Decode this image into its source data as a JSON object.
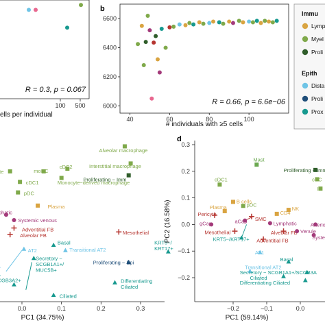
{
  "colors": {
    "lymphoid": "#d9a441",
    "myeloid": "#7fa94a",
    "proliferating_imm": "#2f5d2a",
    "distal": "#6ec4e6",
    "proliferating_epi": "#1f4e79",
    "proximal": "#17998f",
    "endothelial": "#a33a7a",
    "mesenchymal": "#b5342f",
    "mast": "#6aa84f",
    "pink": "#e8678f"
  },
  "chart_data": [
    {
      "id": "a",
      "type": "scatter",
      "xlabel": "ells per individual",
      "ylabel": "",
      "x_ticks": [
        "100",
        "500"
      ],
      "annotation": "R = 0.3, p = 0.067",
      "points": [
        {
          "x": 40,
          "y": 0.9,
          "color": "distal"
        },
        {
          "x": 60,
          "y": 0.9,
          "color": "pink"
        },
        {
          "x": 120,
          "y": 0.72,
          "color": "proximal"
        },
        {
          "x": 500,
          "y": 0.95,
          "color": "myeloid"
        }
      ]
    },
    {
      "id": "b",
      "type": "scatter",
      "xlabel": "# individuals with ≥5 cells",
      "ylabel": "",
      "xlim": [
        35,
        120
      ],
      "ylim": [
        5950,
        6700
      ],
      "x_ticks": [
        40,
        60,
        80,
        100
      ],
      "y_ticks": [
        6000,
        6200,
        6400,
        6600
      ],
      "annotation": "R = 0.66, p = 6.6e−06",
      "points": [
        {
          "x": 44,
          "y": 6425,
          "color": "myeloid"
        },
        {
          "x": 46,
          "y": 6550,
          "color": "lymphoid"
        },
        {
          "x": 47,
          "y": 6280,
          "color": "myeloid"
        },
        {
          "x": 48,
          "y": 6440,
          "color": "proliferating_imm"
        },
        {
          "x": 49,
          "y": 6620,
          "color": "myeloid"
        },
        {
          "x": 50,
          "y": 6520,
          "color": "endothelial"
        },
        {
          "x": 51,
          "y": 6050,
          "color": "pink"
        },
        {
          "x": 52,
          "y": 6435,
          "color": "mesenchymal"
        },
        {
          "x": 53,
          "y": 6480,
          "color": "proliferating_imm"
        },
        {
          "x": 54,
          "y": 6320,
          "color": "lymphoid"
        },
        {
          "x": 55,
          "y": 6230,
          "color": "endothelial"
        },
        {
          "x": 56,
          "y": 6530,
          "color": "proximal"
        },
        {
          "x": 58,
          "y": 6400,
          "color": "myeloid"
        },
        {
          "x": 60,
          "y": 6540,
          "color": "mesenchymal"
        },
        {
          "x": 62,
          "y": 6545,
          "color": "myeloid"
        },
        {
          "x": 65,
          "y": 6560,
          "color": "distal"
        },
        {
          "x": 68,
          "y": 6555,
          "color": "lymphoid"
        },
        {
          "x": 70,
          "y": 6570,
          "color": "myeloid"
        },
        {
          "x": 72,
          "y": 6560,
          "color": "proximal"
        },
        {
          "x": 75,
          "y": 6575,
          "color": "lymphoid"
        },
        {
          "x": 77,
          "y": 6565,
          "color": "myeloid"
        },
        {
          "x": 80,
          "y": 6570,
          "color": "distal"
        },
        {
          "x": 82,
          "y": 6580,
          "color": "lymphoid"
        },
        {
          "x": 85,
          "y": 6575,
          "color": "proximal"
        },
        {
          "x": 87,
          "y": 6565,
          "color": "myeloid"
        },
        {
          "x": 90,
          "y": 6580,
          "color": "lymphoid"
        },
        {
          "x": 92,
          "y": 6570,
          "color": "endothelial"
        },
        {
          "x": 95,
          "y": 6585,
          "color": "myeloid"
        },
        {
          "x": 97,
          "y": 6575,
          "color": "lymphoid"
        },
        {
          "x": 100,
          "y": 6580,
          "color": "distal"
        },
        {
          "x": 102,
          "y": 6575,
          "color": "myeloid"
        },
        {
          "x": 104,
          "y": 6585,
          "color": "proximal"
        },
        {
          "x": 106,
          "y": 6570,
          "color": "lymphoid"
        },
        {
          "x": 108,
          "y": 6585,
          "color": "myeloid"
        },
        {
          "x": 110,
          "y": 6580,
          "color": "lymphoid"
        },
        {
          "x": 112,
          "y": 6575,
          "color": "myeloid"
        },
        {
          "x": 114,
          "y": 6585,
          "color": "proximal"
        }
      ]
    },
    {
      "id": "c",
      "type": "scatter",
      "xlabel": "PC1 (34.75%)",
      "ylabel": "",
      "xlim": [
        -0.07,
        0.42
      ],
      "x_ticks": [
        "0.0",
        "0.1",
        "0.2",
        "0.3"
      ],
      "x_tick_values": [
        0.0,
        0.1,
        0.2,
        0.3
      ],
      "points": [
        {
          "label": "Alveolar macrophage",
          "x": 0.26,
          "y": 0.93,
          "color": "myeloid",
          "shape": "square",
          "lx": 0.195,
          "ly": 0.9
        },
        {
          "label": "Interstitial macrophage",
          "x": 0.275,
          "y": 0.8,
          "color": "myeloid",
          "shape": "square",
          "lx": 0.17,
          "ly": 0.78
        },
        {
          "label": "Proliferating − Imm",
          "x": 0.27,
          "y": 0.71,
          "color": "proliferating_imm",
          "shape": "square",
          "lx": 0.155,
          "ly": 0.68
        },
        {
          "label": "cDC2",
          "x": 0.115,
          "y": 0.76,
          "color": "myeloid",
          "shape": "square",
          "lx": 0.095,
          "ly": 0.775
        },
        {
          "label": "moDC",
          "x": 0.055,
          "y": 0.74,
          "color": "myeloid",
          "shape": "square",
          "lx": 0.03,
          "ly": 0.745
        },
        {
          "label": "Monocyte−derived macrophage",
          "x": 0.1,
          "y": 0.69,
          "color": "myeloid",
          "shape": "square",
          "lx": 0.09,
          "ly": 0.655
        },
        {
          "label": "cyte",
          "x": -0.03,
          "y": 0.74,
          "color": "myeloid",
          "shape": "square",
          "lx": -0.07,
          "ly": 0.74
        },
        {
          "label": "cDC1",
          "x": -0.005,
          "y": 0.66,
          "color": "myeloid",
          "shape": "square",
          "lx": 0.01,
          "ly": 0.655
        },
        {
          "label": "pDC",
          "x": -0.01,
          "y": 0.58,
          "color": "myeloid",
          "shape": "square",
          "lx": 0.005,
          "ly": 0.575
        },
        {
          "label": "Plasma",
          "x": 0.04,
          "y": 0.48,
          "color": "lymphoid",
          "shape": "square",
          "lx": 0.065,
          "ly": 0.475
        },
        {
          "label": "mphatic",
          "x": -0.04,
          "y": 0.41,
          "color": "endothelial",
          "shape": "circle",
          "lx": -0.07,
          "ly": 0.43
        },
        {
          "label": "Systemic venous",
          "x": -0.02,
          "y": 0.37,
          "color": "endothelial",
          "shape": "circle",
          "lx": -0.01,
          "ly": 0.37
        },
        {
          "label": "Adventitial FB",
          "x": -0.02,
          "y": 0.31,
          "color": "mesenchymal",
          "shape": "plus",
          "lx": 0.0,
          "ly": 0.3
        },
        {
          "label": "Alveolar FB",
          "x": -0.03,
          "y": 0.26,
          "color": "mesenchymal",
          "shape": "plus",
          "lx": -0.005,
          "ly": 0.255
        },
        {
          "label": "Mesothelial",
          "x": 0.245,
          "y": 0.28,
          "color": "mesenchymal",
          "shape": "plus",
          "lx": 0.255,
          "ly": 0.275
        },
        {
          "label": "AT2",
          "x": 0.005,
          "y": 0.15,
          "color": "distal",
          "shape": "triangle",
          "lx": 0.015,
          "ly": 0.14
        },
        {
          "label": "Basal",
          "x": 0.08,
          "y": 0.18,
          "color": "proximal",
          "shape": "triangle",
          "lx": 0.09,
          "ly": 0.2
        },
        {
          "label": "Transitional AT2",
          "x": 0.11,
          "y": 0.14,
          "color": "distal",
          "shape": "triangle",
          "lx": 0.12,
          "ly": 0.145
        },
        {
          "label": "KRT5−/\nKRT17+",
          "x": 0.37,
          "y": 0.13,
          "color": "proximal",
          "shape": "triangle",
          "lx": 0.335,
          "ly": 0.2
        },
        {
          "label": "Proliferating − Epi",
          "x": 0.27,
          "y": 0.05,
          "color": "proliferating_epi",
          "shape": "triangle",
          "lx": 0.18,
          "ly": 0.05
        },
        {
          "label": "Secretory −\nSCGB1A1+/\nMUC5B+",
          "x": 0.03,
          "y": 0.08,
          "color": "proximal",
          "shape": "triangle",
          "lx": 0.035,
          "ly": 0.08
        },
        {
          "label": "SCGB3A2+",
          "x": -0.02,
          "y": -0.12,
          "color": "proximal",
          "shape": "triangle",
          "lx": -0.07,
          "ly": -0.085
        },
        {
          "label": "Ciliated",
          "x": 0.08,
          "y": -0.2,
          "color": "proximal",
          "shape": "triangle",
          "lx": 0.095,
          "ly": -0.205
        },
        {
          "label": "Differentiating\nCiliated",
          "x": 0.235,
          "y": -0.105,
          "color": "proximal",
          "shape": "triangle",
          "lx": 0.25,
          "ly": -0.09
        },
        {
          "label": "",
          "x": -0.06,
          "y": -0.04,
          "color": "proximal",
          "shape": "triangle",
          "lx": -0.06,
          "ly": -0.04
        },
        {
          "label": "",
          "x": -0.06,
          "y": 0.02,
          "color": "distal",
          "shape": "triangle",
          "lx": -0.06,
          "ly": 0.02
        }
      ]
    },
    {
      "id": "d",
      "type": "scatter",
      "xlabel": "PC1 (59.14%)",
      "ylabel": "PC2 (16.58%)",
      "xlim": [
        -0.32,
        0.06
      ],
      "ylim": [
        -0.285,
        0.31
      ],
      "x_ticks": [
        "−0.2",
        "−0.1",
        "0.0"
      ],
      "x_tick_values": [
        -0.2,
        -0.1,
        0.0
      ],
      "y_ticks": [
        "0.3",
        "0.2",
        "0.1",
        "0.0",
        "−0.1",
        "−0.2"
      ],
      "y_tick_values": [
        0.3,
        0.2,
        0.1,
        0.0,
        -0.1,
        -0.2
      ],
      "points": [
        {
          "label": "Mast",
          "x": -0.13,
          "y": 0.225,
          "color": "mast",
          "shape": "square",
          "lx": -0.14,
          "ly": 0.245
        },
        {
          "label": "Proliferating − Imm",
          "x": 0.045,
          "y": 0.205,
          "color": "proliferating_imm",
          "shape": "square",
          "lx": -0.05,
          "ly": 0.205
        },
        {
          "label": "cDC1",
          "x": -0.24,
          "y": 0.15,
          "color": "myeloid",
          "shape": "square",
          "lx": -0.255,
          "ly": 0.17
        },
        {
          "label": "cDC",
          "x": 0.05,
          "y": 0.17,
          "color": "myeloid",
          "shape": "square",
          "lx": 0.035,
          "ly": 0.17
        },
        {
          "label": "In",
          "x": 0.06,
          "y": 0.135,
          "color": "myeloid",
          "shape": "square",
          "lx": 0.05,
          "ly": 0.135
        },
        {
          "label": "B cells",
          "x": -0.2,
          "y": 0.085,
          "color": "lymphoid",
          "shape": "square",
          "lx": -0.19,
          "ly": 0.088
        },
        {
          "label": "pDC",
          "x": -0.17,
          "y": 0.07,
          "color": "myeloid",
          "shape": "square",
          "lx": -0.16,
          "ly": 0.075
        },
        {
          "label": "Plasma",
          "x": -0.225,
          "y": 0.05,
          "color": "lymphoid",
          "shape": "square",
          "lx": -0.27,
          "ly": 0.065
        },
        {
          "label": "Pericyte",
          "x": -0.255,
          "y": 0.035,
          "color": "mesenchymal",
          "shape": "plus",
          "lx": -0.305,
          "ly": 0.04
        },
        {
          "label": "SMC",
          "x": -0.145,
          "y": 0.03,
          "color": "mesenchymal",
          "shape": "plus",
          "lx": -0.135,
          "ly": 0.022
        },
        {
          "label": "CD4",
          "x": -0.07,
          "y": 0.04,
          "color": "lymphoid",
          "shape": "square",
          "lx": -0.06,
          "ly": 0.045
        },
        {
          "label": "NK",
          "x": -0.035,
          "y": 0.055,
          "color": "lymphoid",
          "shape": "square",
          "lx": -0.025,
          "ly": 0.06
        },
        {
          "label": "gCap",
          "x": -0.265,
          "y": 0.0,
          "color": "endothelial",
          "shape": "circle",
          "lx": -0.3,
          "ly": 0.005
        },
        {
          "label": "aCap",
          "x": -0.165,
          "y": 0.015,
          "color": "endothelial",
          "shape": "circle",
          "lx": -0.195,
          "ly": 0.012
        },
        {
          "label": "Lymphatic",
          "x": -0.09,
          "y": 0.005,
          "color": "endothelial",
          "shape": "circle",
          "lx": -0.08,
          "ly": 0.005
        },
        {
          "label": "Arterio",
          "x": 0.045,
          "y": 0.0,
          "color": "endothelial",
          "shape": "circle",
          "lx": 0.03,
          "ly": 0.0
        },
        {
          "label": "Mesothelial",
          "x": -0.195,
          "y": -0.025,
          "color": "mesenchymal",
          "shape": "plus",
          "lx": -0.285,
          "ly": -0.028
        },
        {
          "label": "Alveolar FB",
          "x": -0.05,
          "y": -0.025,
          "color": "mesenchymal",
          "shape": "plus",
          "lx": -0.088,
          "ly": -0.03
        },
        {
          "label": "Venule",
          "x": -0.01,
          "y": -0.025,
          "color": "endothelial",
          "shape": "circle",
          "lx": 0.0,
          "ly": -0.025
        },
        {
          "label": "Syste",
          "x": 0.04,
          "y": -0.04,
          "color": "endothelial",
          "shape": "circle",
          "lx": 0.035,
          "ly": -0.048
        },
        {
          "label": "Adventitial FB",
          "x": -0.11,
          "y": -0.055,
          "color": "mesenchymal",
          "shape": "plus",
          "lx": -0.13,
          "ly": -0.06
        },
        {
          "label": "KRT5−/KRT17+",
          "x": -0.175,
          "y": -0.05,
          "color": "proximal",
          "shape": "triangle",
          "lx": -0.26,
          "ly": -0.055
        },
        {
          "label": "AT1",
          "x": -0.12,
          "y": -0.105,
          "color": "distal",
          "shape": "triangle",
          "lx": -0.135,
          "ly": -0.105
        },
        {
          "label": "Basal",
          "x": -0.035,
          "y": -0.14,
          "color": "proximal",
          "shape": "triangle",
          "lx": -0.06,
          "ly": -0.13
        },
        {
          "label": "Transitional AT2",
          "x": -0.15,
          "y": -0.175,
          "color": "distal",
          "shape": "triangle",
          "lx": -0.165,
          "ly": -0.16
        },
        {
          "label": "Secretory − SCGB1A1+/SCGB3A",
          "x": 0.02,
          "y": -0.18,
          "color": "proximal",
          "shape": "triangle",
          "lx": -0.18,
          "ly": -0.18
        },
        {
          "label": "Ciliated",
          "x": -0.05,
          "y": -0.195,
          "color": "proximal",
          "shape": "triangle",
          "lx": -0.15,
          "ly": -0.2
        },
        {
          "label": "Differentiating Ciliated",
          "x": 0.015,
          "y": -0.21,
          "color": "proximal",
          "shape": "triangle",
          "lx": -0.18,
          "ly": -0.218
        }
      ]
    }
  ],
  "legend": {
    "group1_title": "Immu",
    "group1_entries": [
      "Lymp",
      "Myel",
      "Proli"
    ],
    "group1_colors": [
      "lymphoid",
      "myeloid",
      "proliferating_imm"
    ],
    "group2_title": "Epith",
    "group2_entries": [
      "Dista",
      "Proli",
      "Prox"
    ],
    "group2_colors": [
      "distal",
      "proliferating_epi",
      "proximal"
    ]
  }
}
